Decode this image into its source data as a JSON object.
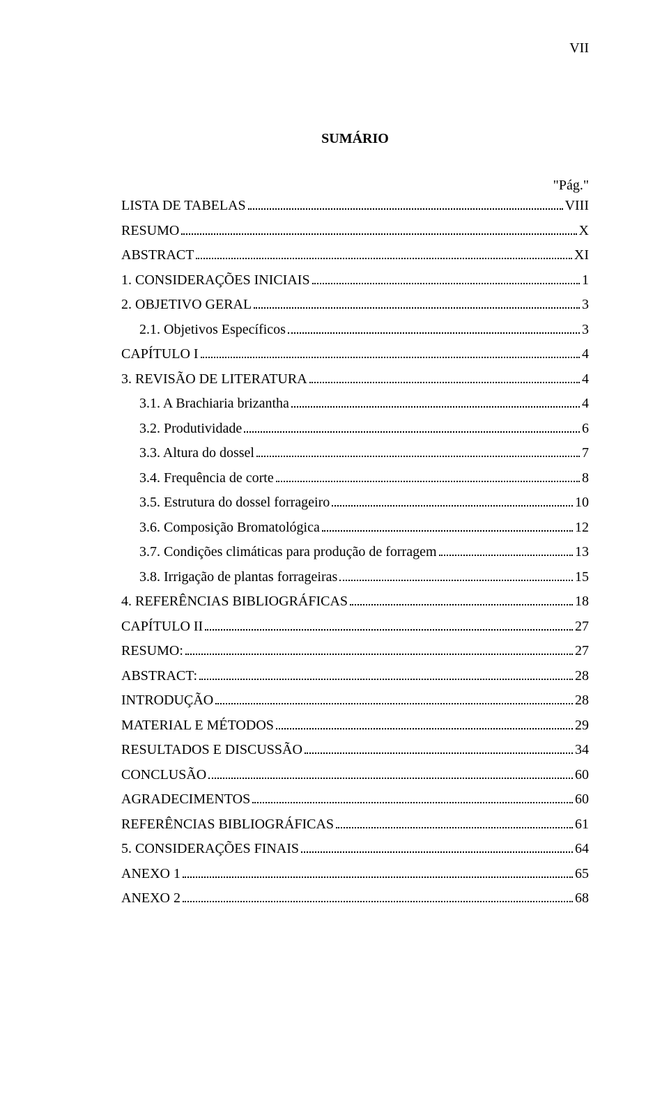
{
  "page_number_label": "VII",
  "title": "SUMÁRIO",
  "page_column_label": "\"Pág.\"",
  "text_color": "#000000",
  "background_color": "#ffffff",
  "dot_leader_color": "#000000",
  "font_family": "Times New Roman",
  "title_fontsize_pt": 15,
  "body_fontsize_pt": 15,
  "entries": [
    {
      "label": "LISTA DE TABELAS",
      "page": "VIII",
      "indent": 0
    },
    {
      "label": "RESUMO",
      "page": "X",
      "indent": 0
    },
    {
      "label": "ABSTRACT",
      "page": "XI",
      "indent": 0
    },
    {
      "label": "1. CONSIDERAÇÕES INICIAIS",
      "page": "1",
      "indent": 0
    },
    {
      "label": "2. OBJETIVO GERAL",
      "page": "3",
      "indent": 0
    },
    {
      "label": "2.1. Objetivos Específicos",
      "page": "3",
      "indent": 1
    },
    {
      "label": "CAPÍTULO I",
      "page": "4",
      "indent": 0
    },
    {
      "label": "3. REVISÃO DE LITERATURA",
      "page": "4",
      "indent": 0
    },
    {
      "label": "3.1. A Brachiaria brizantha",
      "page": "4",
      "indent": 1
    },
    {
      "label": "3.2. Produtividade",
      "page": "6",
      "indent": 1
    },
    {
      "label": "3.3. Altura do dossel",
      "page": "7",
      "indent": 1
    },
    {
      "label": "3.4. Frequência de corte",
      "page": "8",
      "indent": 1
    },
    {
      "label": "3.5. Estrutura do dossel forrageiro",
      "page": "10",
      "indent": 1
    },
    {
      "label": "3.6. Composição Bromatológica",
      "page": "12",
      "indent": 1
    },
    {
      "label": "3.7. Condições climáticas para produção de forragem",
      "page": "13",
      "indent": 1
    },
    {
      "label": "3.8. Irrigação de plantas forrageiras",
      "page": "15",
      "indent": 1
    },
    {
      "label": "4. REFERÊNCIAS BIBLIOGRÁFICAS",
      "page": "18",
      "indent": 0
    },
    {
      "label": "CAPÍTULO II",
      "page": "27",
      "indent": 0
    },
    {
      "label": "RESUMO:",
      "page": "27",
      "indent": 0
    },
    {
      "label": "ABSTRACT:",
      "page": "28",
      "indent": 0
    },
    {
      "label": "INTRODUÇÃO",
      "page": "28",
      "indent": 0
    },
    {
      "label": "MATERIAL E MÉTODOS",
      "page": "29",
      "indent": 0
    },
    {
      "label": "RESULTADOS E DISCUSSÃO",
      "page": "34",
      "indent": 0
    },
    {
      "label": "CONCLUSÃO",
      "page": "60",
      "indent": 0
    },
    {
      "label": "AGRADECIMENTOS",
      "page": "60",
      "indent": 0
    },
    {
      "label": "REFERÊNCIAS BIBLIOGRÁFICAS",
      "page": "61",
      "indent": 0
    },
    {
      "label": "5. CONSIDERAÇÕES FINAIS",
      "page": "64",
      "indent": 0
    },
    {
      "label": "ANEXO 1",
      "page": "65",
      "indent": 0
    },
    {
      "label": "ANEXO 2",
      "page": "68",
      "indent": 0
    }
  ]
}
